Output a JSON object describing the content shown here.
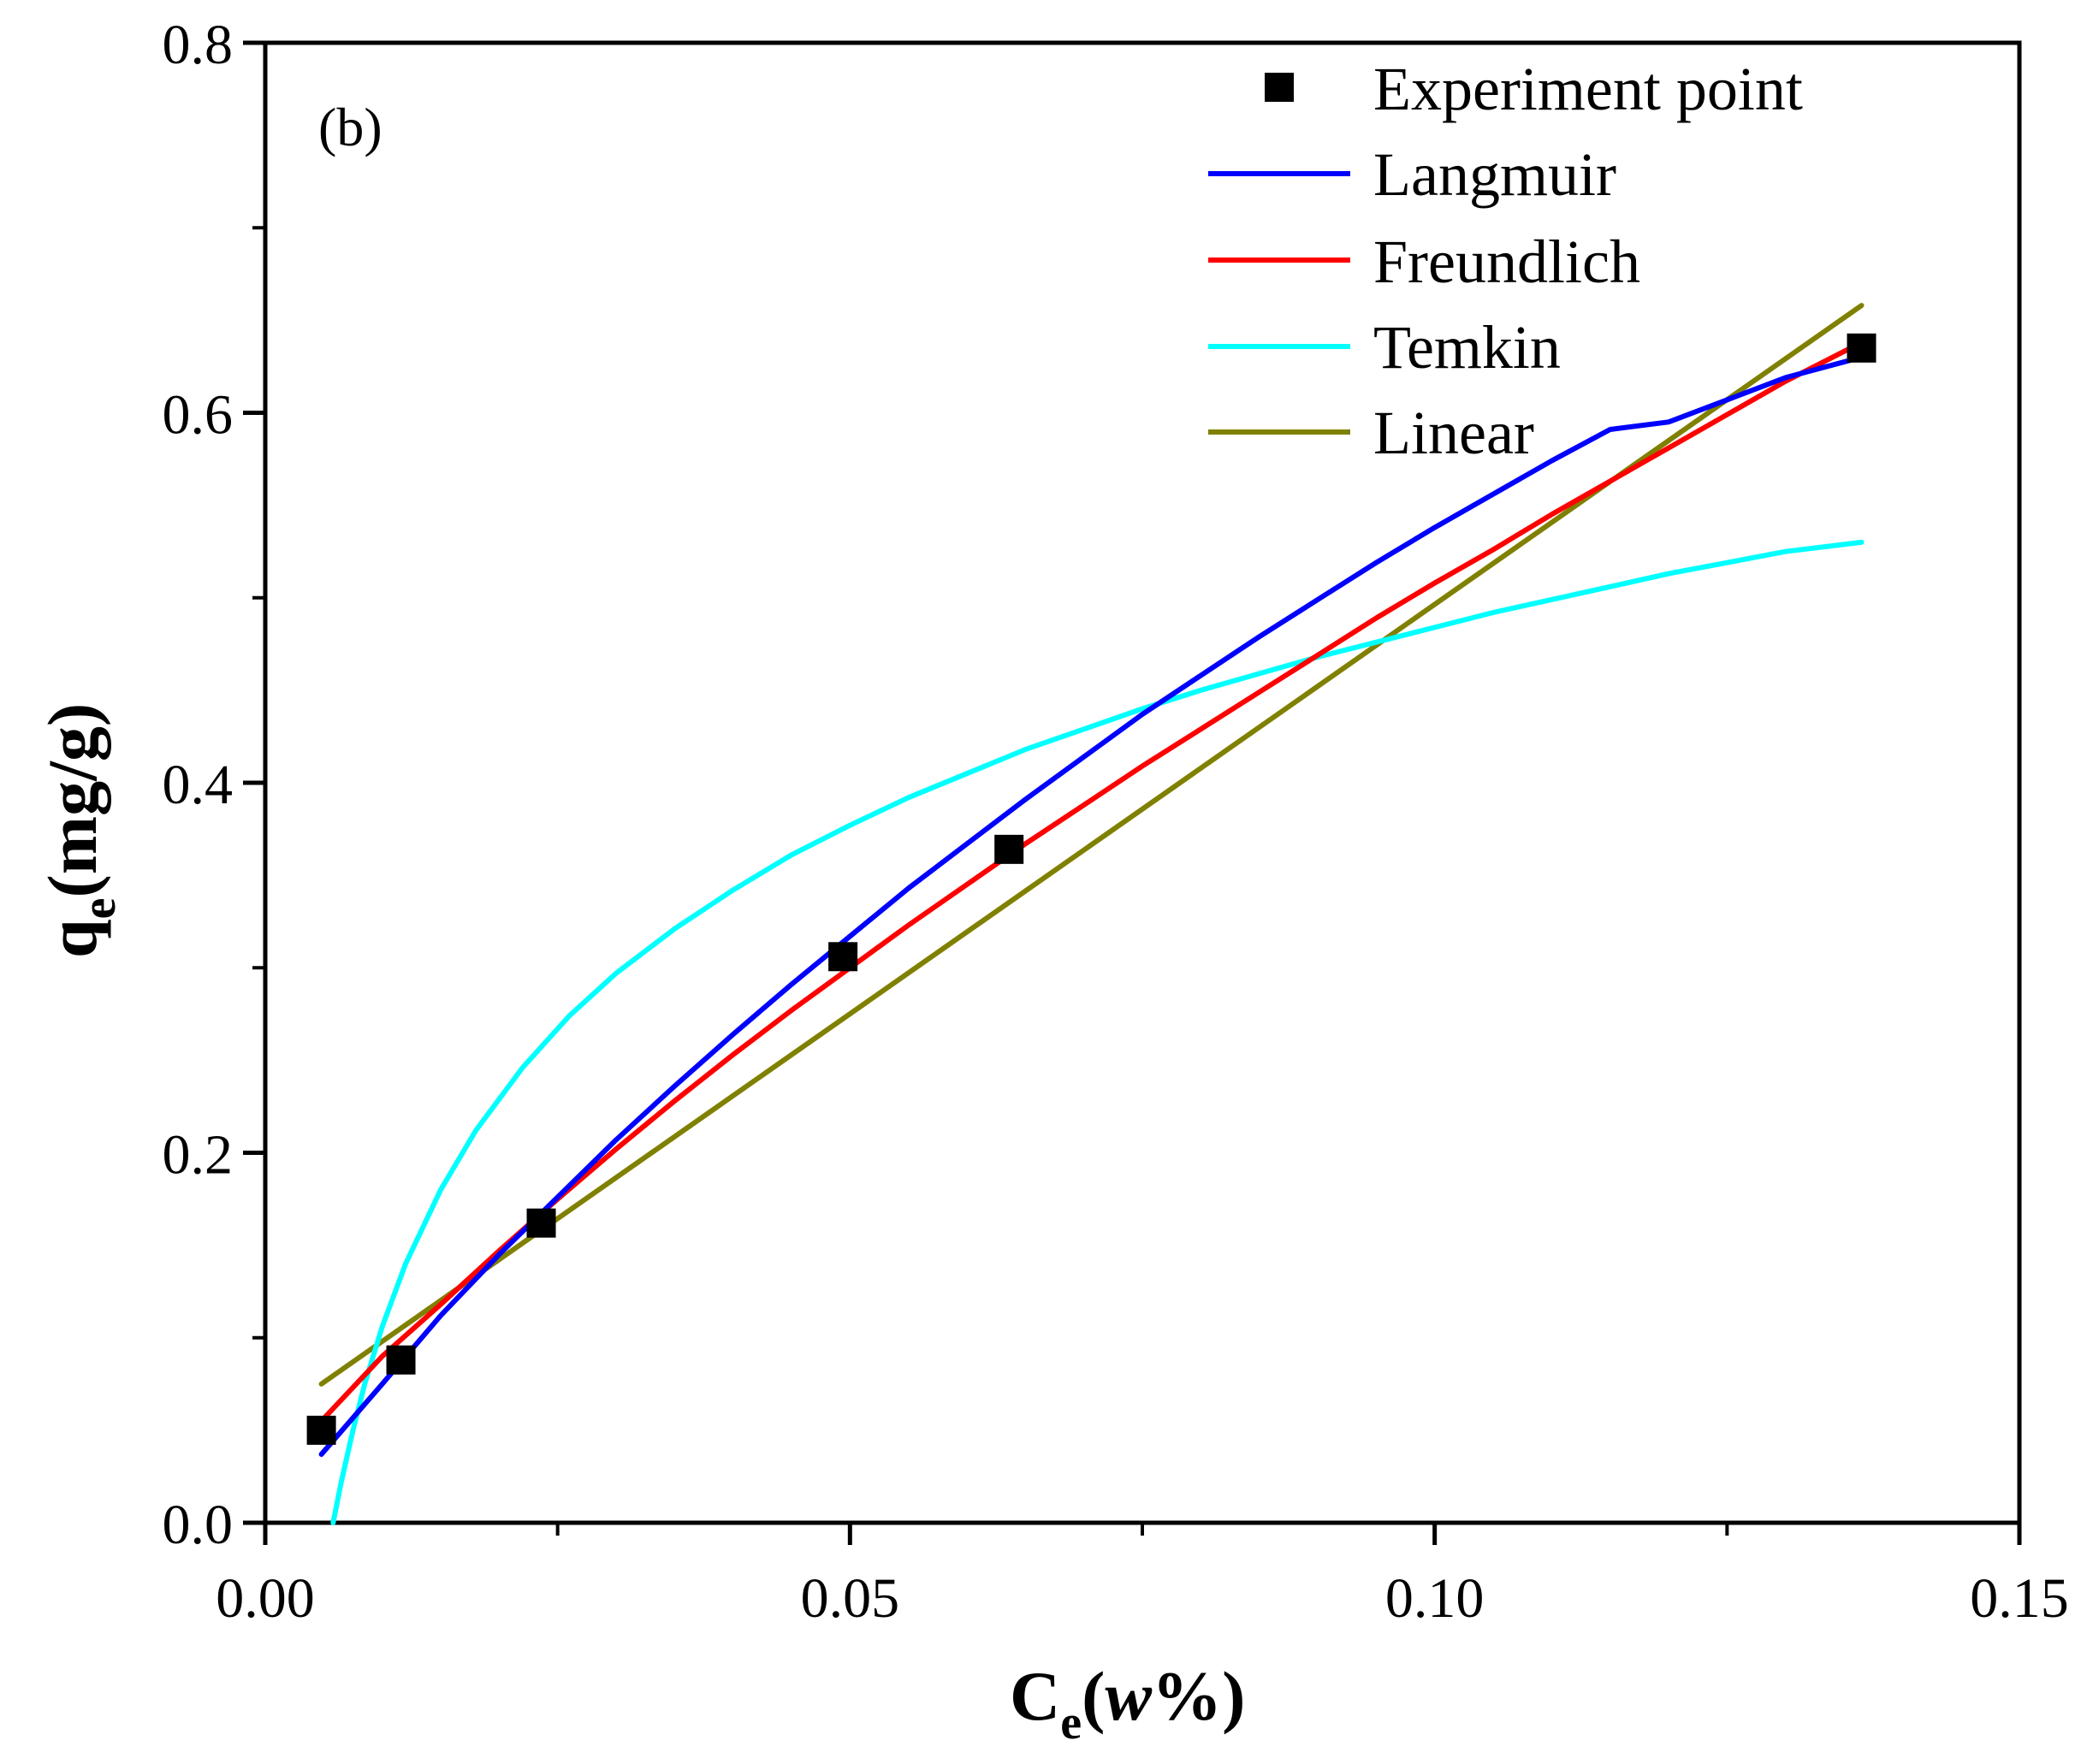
{
  "chart_data": {
    "type": "scatter",
    "panel_label": "(b)",
    "xlabel": {
      "main": "C",
      "sub": "e",
      "paren_open": "(",
      "italic": "w",
      "rest": "%)"
    },
    "ylabel": {
      "main": "q",
      "sub": "e",
      "rest": "(mg/g)"
    },
    "xlim": [
      0.0,
      0.15
    ],
    "ylim": [
      0.0,
      0.8
    ],
    "x_ticks": [
      "0.00",
      "0.05",
      "0.10",
      "0.15"
    ],
    "y_ticks": [
      "0.0",
      "0.2",
      "0.4",
      "0.6",
      "0.8"
    ],
    "x_tick_values": [
      0.0,
      0.05,
      0.1,
      0.15
    ],
    "y_tick_values": [
      0.0,
      0.2,
      0.4,
      0.6,
      0.8
    ],
    "grid": false,
    "legend_position": "top-right",
    "experiment": {
      "name": "Experiment point",
      "color": "#000000",
      "x": [
        0.0048,
        0.0116,
        0.0236,
        0.0494,
        0.0636,
        0.1365
      ],
      "y": [
        0.05,
        0.088,
        0.162,
        0.306,
        0.364,
        0.635
      ]
    },
    "series": [
      {
        "name": "Langmuir",
        "color": "#0000ff",
        "x": [
          0.0048,
          0.01,
          0.015,
          0.02,
          0.025,
          0.03,
          0.035,
          0.04,
          0.045,
          0.05,
          0.055,
          0.06,
          0.065,
          0.07,
          0.075,
          0.08,
          0.085,
          0.09,
          0.095,
          0.1,
          0.105,
          0.11,
          0.115,
          0.12,
          0.125,
          0.13,
          0.1365
        ],
        "y": [
          0.037,
          0.075,
          0.112,
          0.145,
          0.176,
          0.207,
          0.236,
          0.264,
          0.291,
          0.317,
          0.343,
          0.367,
          0.391,
          0.414,
          0.437,
          0.458,
          0.479,
          0.499,
          0.519,
          0.538,
          0.556,
          0.574,
          0.591,
          0.595,
          0.607,
          0.619,
          0.63
        ]
      },
      {
        "name": "Freundlich",
        "color": "#ff0000",
        "x": [
          0.0048,
          0.01,
          0.015,
          0.02,
          0.025,
          0.03,
          0.035,
          0.04,
          0.045,
          0.05,
          0.055,
          0.06,
          0.065,
          0.07,
          0.075,
          0.08,
          0.085,
          0.09,
          0.095,
          0.1,
          0.105,
          0.11,
          0.115,
          0.12,
          0.125,
          0.13,
          0.1365
        ],
        "y": [
          0.055,
          0.09,
          0.118,
          0.147,
          0.175,
          0.202,
          0.228,
          0.253,
          0.277,
          0.3,
          0.323,
          0.345,
          0.367,
          0.388,
          0.409,
          0.429,
          0.449,
          0.469,
          0.489,
          0.508,
          0.526,
          0.545,
          0.563,
          0.581,
          0.599,
          0.617,
          0.638
        ]
      },
      {
        "name": "Temkin",
        "color": "#00ffff",
        "x": [
          0.0058,
          0.0065,
          0.0075,
          0.0085,
          0.01,
          0.012,
          0.015,
          0.018,
          0.022,
          0.026,
          0.03,
          0.035,
          0.04,
          0.045,
          0.05,
          0.055,
          0.06,
          0.065,
          0.07,
          0.075,
          0.08,
          0.085,
          0.09,
          0.095,
          0.1,
          0.105,
          0.11,
          0.115,
          0.12,
          0.125,
          0.13,
          0.1365
        ],
        "y": [
          0.0,
          0.022,
          0.05,
          0.075,
          0.106,
          0.14,
          0.18,
          0.212,
          0.246,
          0.274,
          0.297,
          0.321,
          0.342,
          0.361,
          0.377,
          0.392,
          0.405,
          0.418,
          0.429,
          0.44,
          0.45,
          0.459,
          0.468,
          0.476,
          0.484,
          0.492,
          0.499,
          0.506,
          0.513,
          0.519,
          0.525,
          0.53
        ]
      },
      {
        "name": "Linear",
        "color": "#808000",
        "x": [
          0.0048,
          0.1365
        ],
        "y": [
          0.075,
          0.658
        ]
      }
    ]
  }
}
